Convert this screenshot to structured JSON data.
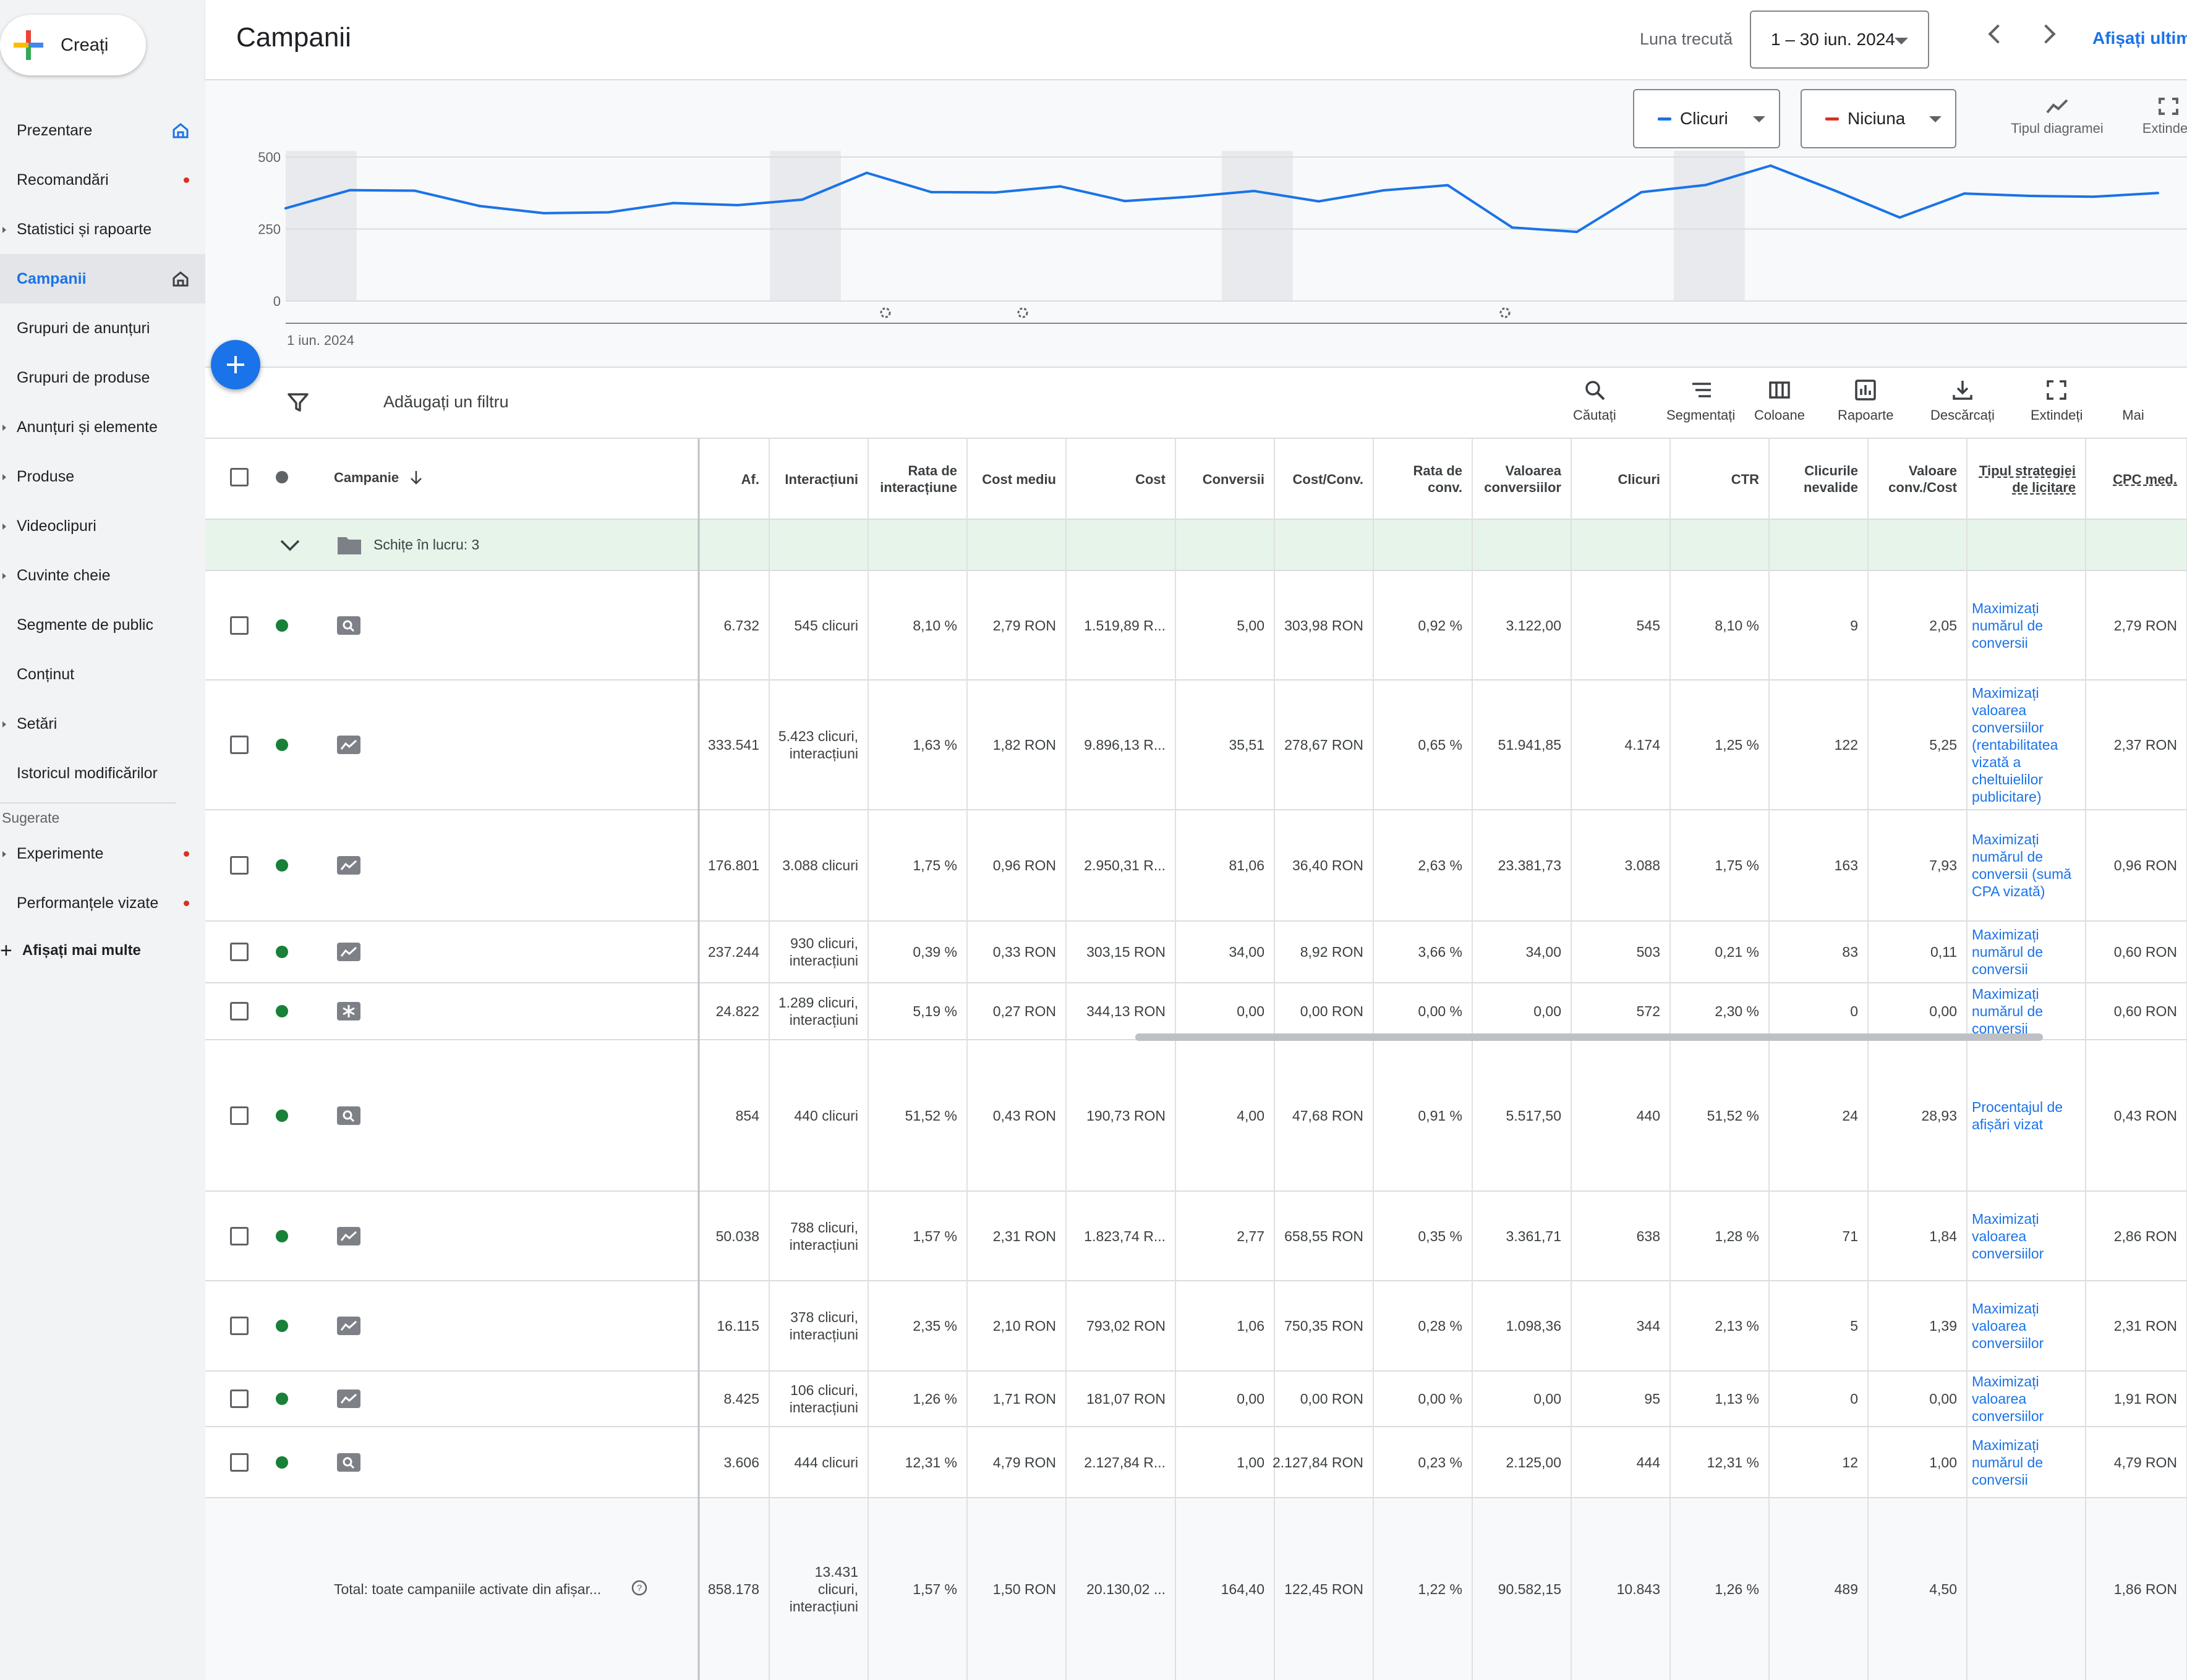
{
  "create": {
    "label": "Creați"
  },
  "sidebar": {
    "items": [
      {
        "label": "Prezentare",
        "arrow": false,
        "badge": "home"
      },
      {
        "label": "Recomandări",
        "arrow": false,
        "badge": "dot"
      },
      {
        "label": "Statistici și rapoarte",
        "arrow": true,
        "badge": ""
      },
      {
        "label": "Campanii",
        "arrow": false,
        "badge": "home",
        "active": true
      },
      {
        "label": "Grupuri de anunțuri",
        "arrow": false,
        "badge": ""
      },
      {
        "label": "Grupuri de produse",
        "arrow": false,
        "badge": ""
      },
      {
        "label": "Anunțuri și elemente",
        "arrow": true,
        "badge": ""
      },
      {
        "label": "Produse",
        "arrow": true,
        "badge": ""
      },
      {
        "label": "Videoclipuri",
        "arrow": true,
        "badge": ""
      },
      {
        "label": "Cuvinte cheie",
        "arrow": true,
        "badge": ""
      },
      {
        "label": "Segmente de public",
        "arrow": false,
        "badge": ""
      },
      {
        "label": "Conținut",
        "arrow": false,
        "badge": ""
      },
      {
        "label": "Setări",
        "arrow": true,
        "badge": ""
      },
      {
        "label": "Istoricul modificărilor",
        "arrow": false,
        "badge": ""
      }
    ],
    "suggested_label": "Sugerate",
    "suggested_items": [
      {
        "label": "Experimente",
        "arrow": true,
        "badge": "dot"
      },
      {
        "label": "Performanțele vizate",
        "arrow": false,
        "badge": "dot"
      }
    ],
    "show_more": "Afișați mai multe"
  },
  "header": {
    "title": "Campanii",
    "date_label": "Luna trecută",
    "date_range": "1 – 30 iun. 2024",
    "show_last": "Afișați ultim"
  },
  "chart": {
    "metric1": "Clicuri",
    "metric1_color": "#1a73e8",
    "metric2": "Niciuna",
    "metric2_color": "#d93025",
    "chart_type_label": "Tipul diagramei",
    "expand_label": "Extindeți",
    "start_date": "1 iun. 2024"
  },
  "chart_data": {
    "type": "line",
    "x_label": "1 iun. 2024",
    "y_ticks": [
      "500",
      "250",
      "0"
    ],
    "ylim": [
      0,
      500
    ],
    "series": [
      {
        "name": "Clicuri",
        "color": "#1a73e8",
        "values": [
          322,
          385,
          383,
          330,
          305,
          308,
          340,
          333,
          352,
          445,
          378,
          377,
          398,
          347,
          362,
          382,
          346,
          384,
          402,
          255,
          240,
          378,
          403,
          470,
          383,
          290,
          373,
          365,
          362,
          375
        ]
      }
    ]
  },
  "filter": {
    "placeholder": "Adăugați un filtru"
  },
  "toolbar": [
    {
      "label": "Căutați",
      "icon": "search-icon"
    },
    {
      "label": "Segmentați",
      "icon": "segment-icon"
    },
    {
      "label": "Coloane",
      "icon": "columns-icon"
    },
    {
      "label": "Rapoarte",
      "icon": "reports-icon"
    },
    {
      "label": "Descărcați",
      "icon": "download-icon"
    },
    {
      "label": "Extindeți",
      "icon": "expand-icon"
    },
    {
      "label": "Mai",
      "icon": "more-icon"
    }
  ],
  "table": {
    "campaign_header": "Campanie",
    "columns": [
      "Af.",
      "Interacțiuni",
      "Rata de interacțiune",
      "Cost mediu",
      "Cost",
      "Conversii",
      "Cost/Conv.",
      "Rata de conv.",
      "Valoarea conversiilor",
      "Clicuri",
      "CTR",
      "Clicurile nevalide",
      "Valoare conv./Cost",
      "Tipul strategiei de licitare",
      "CPC med."
    ],
    "draft_row": "Schițe în lucru: 3",
    "rows": [
      {
        "type": "search",
        "cells": [
          "6.732",
          "545 clicuri",
          "8,10 %",
          "2,79 RON",
          "1.519,89 R...",
          "5,00",
          "303,98 RON",
          "0,92 %",
          "3.122,00",
          "545",
          "8,10 %",
          "9",
          "2,05",
          "Maximizați numărul de conversii",
          "2,79 RON"
        ]
      },
      {
        "type": "pmax",
        "cells": [
          "333.541",
          "5.423 clicuri, interacțiuni",
          "1,63 %",
          "1,82 RON",
          "9.896,13 R...",
          "35,51",
          "278,67 RON",
          "0,65 %",
          "51.941,85",
          "4.174",
          "1,25 %",
          "122",
          "5,25",
          "Maximizați valoarea conversiilor (rentabilitatea vizată a cheltuielilor publicitare)",
          "2,37 RON"
        ]
      },
      {
        "type": "pmax",
        "cells": [
          "176.801",
          "3.088 clicuri",
          "1,75 %",
          "0,96 RON",
          "2.950,31 R...",
          "81,06",
          "36,40 RON",
          "2,63 %",
          "23.381,73",
          "3.088",
          "1,75 %",
          "163",
          "7,93",
          "Maximizați numărul de conversii (sumă CPA vizată)",
          "0,96 RON"
        ]
      },
      {
        "type": "pmax",
        "cells": [
          "237.244",
          "930 clicuri, interacțiuni",
          "0,39 %",
          "0,33 RON",
          "303,15 RON",
          "34,00",
          "8,92 RON",
          "3,66 %",
          "34,00",
          "503",
          "0,21 %",
          "83",
          "0,11",
          "Maximizați numărul de conversii",
          "0,60 RON"
        ]
      },
      {
        "type": "demand",
        "cells": [
          "24.822",
          "1.289 clicuri, interacțiuni",
          "5,19 %",
          "0,27 RON",
          "344,13 RON",
          "0,00",
          "0,00 RON",
          "0,00 %",
          "0,00",
          "572",
          "2,30 %",
          "0",
          "0,00",
          "Maximizați numărul de conversii",
          "0,60 RON"
        ]
      },
      {
        "type": "search",
        "cells": [
          "854",
          "440 clicuri",
          "51,52 %",
          "0,43 RON",
          "190,73 RON",
          "4,00",
          "47,68 RON",
          "0,91 %",
          "5.517,50",
          "440",
          "51,52 %",
          "24",
          "28,93",
          "Procentajul de afișări vizat",
          "0,43 RON"
        ]
      },
      {
        "type": "pmax",
        "cells": [
          "50.038",
          "788 clicuri, interacțiuni",
          "1,57 %",
          "2,31 RON",
          "1.823,74 R...",
          "2,77",
          "658,55 RON",
          "0,35 %",
          "3.361,71",
          "638",
          "1,28 %",
          "71",
          "1,84",
          "Maximizați valoarea conversiilor",
          "2,86 RON"
        ]
      },
      {
        "type": "pmax",
        "cells": [
          "16.115",
          "378 clicuri, interacțiuni",
          "2,35 %",
          "2,10 RON",
          "793,02 RON",
          "1,06",
          "750,35 RON",
          "0,28 %",
          "1.098,36",
          "344",
          "2,13 %",
          "5",
          "1,39",
          "Maximizați valoarea conversiilor",
          "2,31 RON"
        ]
      },
      {
        "type": "pmax",
        "cells": [
          "8.425",
          "106 clicuri, interacțiuni",
          "1,26 %",
          "1,71 RON",
          "181,07 RON",
          "0,00",
          "0,00 RON",
          "0,00 %",
          "0,00",
          "95",
          "1,13 %",
          "0",
          "0,00",
          "Maximizați valoarea conversiilor",
          "1,91 RON"
        ]
      },
      {
        "type": "search",
        "cells": [
          "3.606",
          "444 clicuri",
          "12,31 %",
          "4,79 RON",
          "2.127,84 R...",
          "1,00",
          "2.127,84 RON",
          "0,23 %",
          "2.125,00",
          "444",
          "12,31 %",
          "12",
          "1,00",
          "Maximizați numărul de conversii",
          "4,79 RON"
        ]
      }
    ],
    "total": {
      "label": "Total: toate campaniile activate din afișar...",
      "cells": [
        "858.178",
        "13.431 clicuri, interacțiuni",
        "1,57 %",
        "1,50 RON",
        "20.130,02 ...",
        "164,40",
        "122,45 RON",
        "1,22 %",
        "90.582,15",
        "10.843",
        "1,26 %",
        "489",
        "4,50",
        "",
        "1,86 RON"
      ]
    }
  }
}
